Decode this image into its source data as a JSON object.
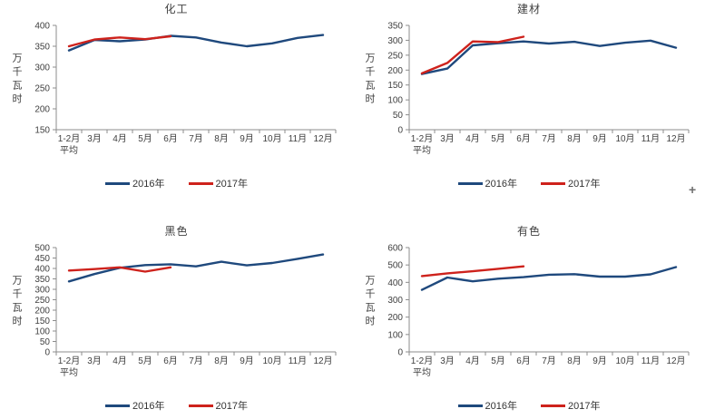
{
  "page": {
    "background": "#ffffff"
  },
  "cursor": {
    "glyph": "+"
  },
  "colors": {
    "series_2016": "#1f497d",
    "series_2017": "#ce221c",
    "axis_line": "#8c8c8c",
    "label_text": "#3f3f3f"
  },
  "chart_data": [
    {
      "type": "line",
      "title": "化工",
      "ylabel": "万千瓦时",
      "xlabel": "",
      "categories": [
        "1-2月",
        "3月",
        "4月",
        "5月",
        "6月",
        "7月",
        "8月",
        "9月",
        "10月",
        "11月",
        "12月"
      ],
      "first_category_subline": "平均",
      "ylim": [
        150,
        400
      ],
      "ystep": 50,
      "grid": false,
      "legend_position": "bottom",
      "series": [
        {
          "name": "2016年",
          "color": "#1f497d",
          "values": [
            340,
            365,
            362,
            366,
            375,
            371,
            359,
            350,
            357,
            370,
            377
          ]
        },
        {
          "name": "2017年",
          "color": "#ce221c",
          "values": [
            350,
            366,
            371,
            367,
            374
          ]
        }
      ]
    },
    {
      "type": "line",
      "title": "建材",
      "ylabel": "万千瓦时",
      "xlabel": "",
      "categories": [
        "1-2月",
        "3月",
        "4月",
        "5月",
        "6月",
        "7月",
        "8月",
        "9月",
        "10月",
        "11月",
        "12月"
      ],
      "first_category_subline": "平均",
      "ylim": [
        0,
        350
      ],
      "ystep": 50,
      "grid": false,
      "legend_position": "bottom",
      "series": [
        {
          "name": "2016年",
          "color": "#1f497d",
          "values": [
            187,
            205,
            283,
            290,
            296,
            289,
            295,
            281,
            292,
            299,
            275
          ]
        },
        {
          "name": "2017年",
          "color": "#ce221c",
          "values": [
            189,
            224,
            296,
            294,
            312
          ]
        }
      ]
    },
    {
      "type": "line",
      "title": "黑色",
      "ylabel": "万千瓦时",
      "xlabel": "",
      "categories": [
        "1-2月",
        "3月",
        "4月",
        "5月",
        "6月",
        "7月",
        "8月",
        "9月",
        "10月",
        "11月",
        "12月"
      ],
      "first_category_subline": "平均",
      "ylim": [
        0,
        500
      ],
      "ystep": 50,
      "grid": false,
      "legend_position": "bottom",
      "series": [
        {
          "name": "2016年",
          "color": "#1f497d",
          "values": [
            338,
            373,
            403,
            416,
            420,
            410,
            432,
            415,
            426,
            446,
            467
          ]
        },
        {
          "name": "2017年",
          "color": "#ce221c",
          "values": [
            390,
            397,
            405,
            385,
            405
          ]
        }
      ]
    },
    {
      "type": "line",
      "title": "有色",
      "ylabel": "万千瓦时",
      "xlabel": "",
      "categories": [
        "1-2月",
        "3月",
        "4月",
        "5月",
        "6月",
        "7月",
        "8月",
        "9月",
        "10月",
        "11月",
        "12月"
      ],
      "first_category_subline": "平均",
      "ylim": [
        0,
        600
      ],
      "ystep": 100,
      "grid": false,
      "legend_position": "bottom",
      "series": [
        {
          "name": "2016年",
          "color": "#1f497d",
          "values": [
            357,
            428,
            406,
            421,
            430,
            444,
            447,
            433,
            433,
            446,
            488
          ]
        },
        {
          "name": "2017年",
          "color": "#ce221c",
          "values": [
            436,
            452,
            464,
            478,
            492
          ]
        }
      ]
    }
  ]
}
